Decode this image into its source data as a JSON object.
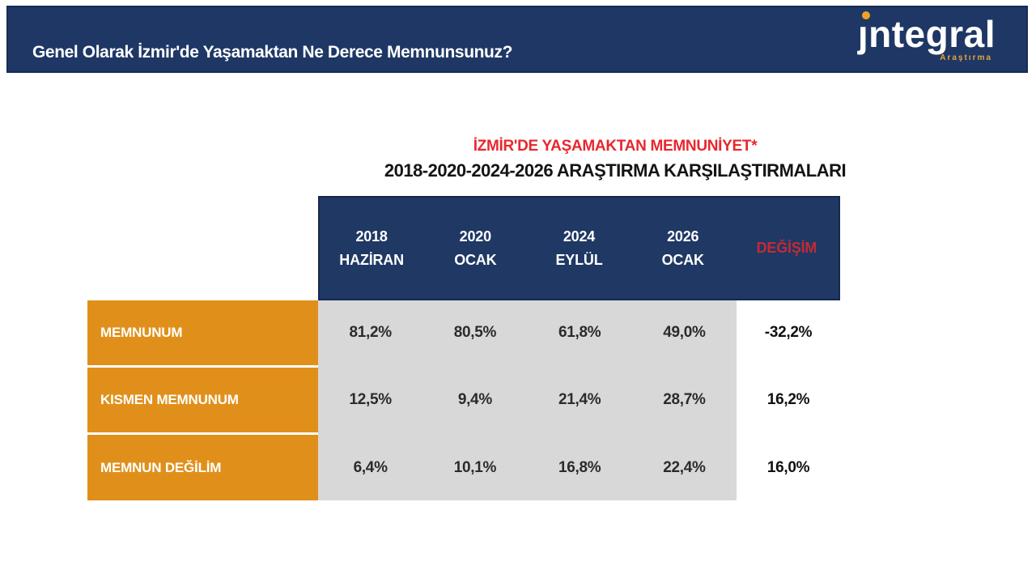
{
  "header_bar": {
    "question": "Genel Olarak İzmir'de Yaşamaktan Ne Derece Memnunsunuz?",
    "logo": {
      "initial": "ȷ",
      "rest": "ntegral",
      "subtitle": "Araştırma"
    }
  },
  "title": {
    "line1": "İZMİR'DE YAŞAMAKTAN MEMNUNİYET*",
    "line2": "2018-2020-2024-2026 ARAŞTIRMA KARŞILAŞTIRMALARI"
  },
  "chart_data": {
    "type": "table",
    "title": "İZMİR'DE YAŞAMAKTAN MEMNUNİYET*",
    "subtitle": "2018-2020-2024-2026 ARAŞTIRMA KARŞILAŞTIRMALARI",
    "columns": [
      {
        "year": "2018",
        "month": "HAZİRAN"
      },
      {
        "year": "2020",
        "month": "OCAK"
      },
      {
        "year": "2024",
        "month": "EYLÜL"
      },
      {
        "year": "2026",
        "month": "OCAK"
      }
    ],
    "change_column_label": "DEĞİŞİM",
    "rows": [
      {
        "label": "MEMNUNUM",
        "values": [
          "81,2%",
          "80,5%",
          "61,8%",
          "49,0%"
        ],
        "change": "-32,2%"
      },
      {
        "label": "KISMEN MEMNUNUM",
        "values": [
          "12,5%",
          "9,4%",
          "21,4%",
          "28,7%"
        ],
        "change": "16,2%"
      },
      {
        "label": "MEMNUN DEĞİLİM",
        "values": [
          "6,4%",
          "10,1%",
          "16,8%",
          "22,4%"
        ],
        "change": "16,0%"
      }
    ]
  },
  "colors": {
    "navy": "#1F3864",
    "orange": "#E0901A",
    "gray": "#D8D8D8",
    "title_red": "#E8272E",
    "change_red": "#C42A35",
    "logo_dot_orange": "#F0A125"
  }
}
